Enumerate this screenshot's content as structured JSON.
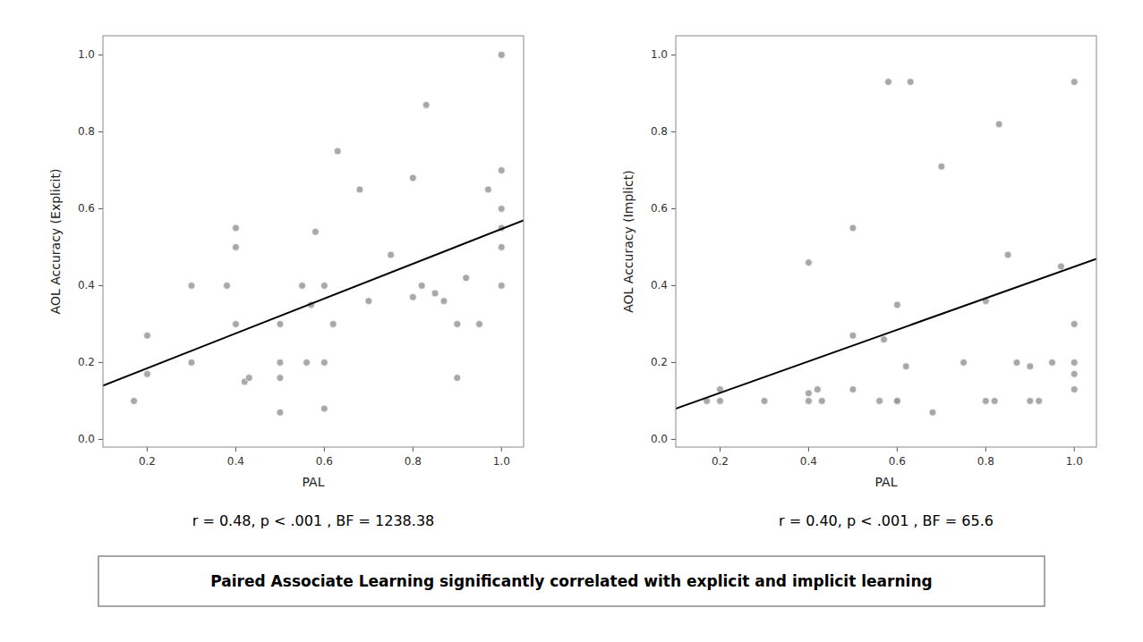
{
  "chart_data": [
    {
      "type": "scatter",
      "x_label": "PAL",
      "y_label": "AOL Accuracy (Explicit)",
      "annotation": "r = 0.48, p < .001 , BF = 1238.38",
      "series": [
        {
          "type": "scatter",
          "color": "#999999",
          "x": [
            0.17,
            0.2,
            0.2,
            0.3,
            0.3,
            0.38,
            0.4,
            0.4,
            0.4,
            0.42,
            0.43,
            0.5,
            0.5,
            0.5,
            0.5,
            0.55,
            0.56,
            0.57,
            0.58,
            0.6,
            0.6,
            0.6,
            0.62,
            0.63,
            0.68,
            0.7,
            0.75,
            0.8,
            0.8,
            0.82,
            0.83,
            0.85,
            0.87,
            0.9,
            0.9,
            0.92,
            0.95,
            0.97,
            1.0,
            1.0,
            1.0,
            1.0,
            1.0,
            1.0
          ],
          "values": [
            0.1,
            0.17,
            0.27,
            0.2,
            0.4,
            0.4,
            0.3,
            0.5,
            0.55,
            0.15,
            0.16,
            0.16,
            0.2,
            0.3,
            0.07,
            0.4,
            0.2,
            0.35,
            0.54,
            0.08,
            0.2,
            0.4,
            0.3,
            0.75,
            0.65,
            0.36,
            0.48,
            0.37,
            0.68,
            0.4,
            0.87,
            0.38,
            0.36,
            0.16,
            0.3,
            0.42,
            0.3,
            0.65,
            0.4,
            0.5,
            0.55,
            0.6,
            0.7,
            1.0
          ]
        },
        {
          "type": "line",
          "color": "#000000",
          "x": [
            0.1,
            1.05
          ],
          "values": [
            0.14,
            0.57
          ]
        }
      ],
      "xlim": [
        0.1,
        1.05
      ],
      "ylim": [
        -0.02,
        1.05
      ],
      "xticks": [
        0.2,
        0.4,
        0.6,
        0.8,
        {
          "value": 1.0,
          "label": "1.0"
        }
      ],
      "yticks": [
        {
          "value": 0.0,
          "label": "0.0"
        },
        0.2,
        0.4,
        0.6,
        0.8,
        {
          "value": 1.0,
          "label": "1.0"
        }
      ],
      "grid": false
    },
    {
      "type": "scatter",
      "x_label": "PAL",
      "y_label": "AOL Accuracy (Implict)",
      "annotation": "r = 0.40, p < .001 , BF = 65.6",
      "series": [
        {
          "type": "scatter",
          "color": "#999999",
          "x": [
            0.17,
            0.2,
            0.2,
            0.3,
            0.4,
            0.4,
            0.4,
            0.42,
            0.43,
            0.5,
            0.5,
            0.5,
            0.56,
            0.57,
            0.58,
            0.6,
            0.6,
            0.6,
            0.62,
            0.63,
            0.68,
            0.7,
            0.75,
            0.8,
            0.8,
            0.82,
            0.83,
            0.85,
            0.87,
            0.9,
            0.9,
            0.92,
            0.95,
            0.97,
            1.0,
            1.0,
            1.0,
            1.0,
            1.0
          ],
          "values": [
            0.1,
            0.1,
            0.13,
            0.1,
            0.1,
            0.12,
            0.46,
            0.13,
            0.1,
            0.13,
            0.27,
            0.55,
            0.1,
            0.26,
            0.93,
            0.1,
            0.1,
            0.35,
            0.19,
            0.93,
            0.07,
            0.71,
            0.2,
            0.1,
            0.36,
            0.1,
            0.82,
            0.48,
            0.2,
            0.1,
            0.19,
            0.1,
            0.2,
            0.45,
            0.13,
            0.17,
            0.2,
            0.3,
            0.93
          ]
        },
        {
          "type": "line",
          "color": "#000000",
          "x": [
            0.1,
            1.05
          ],
          "values": [
            0.08,
            0.47
          ]
        }
      ],
      "xlim": [
        0.1,
        1.05
      ],
      "ylim": [
        -0.02,
        1.05
      ],
      "xticks": [
        0.2,
        0.4,
        0.6,
        0.8,
        {
          "value": 1.0,
          "label": "1.0"
        }
      ],
      "yticks": [
        {
          "value": 0.0,
          "label": "0.0"
        },
        0.2,
        0.4,
        0.6,
        0.8,
        {
          "value": 1.0,
          "label": "1.0"
        }
      ],
      "grid": false
    }
  ],
  "summary_text": "Paired Associate Learning significantly correlated with explicit and implicit learning"
}
